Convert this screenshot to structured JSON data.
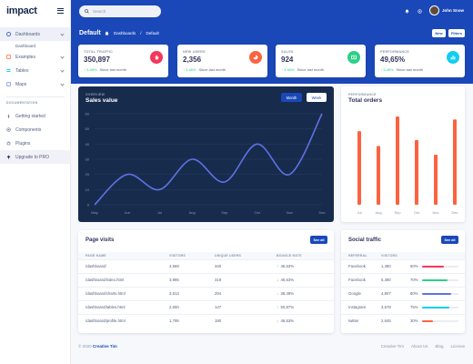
{
  "brand": "impact",
  "sidebar": {
    "items": [
      {
        "label": "Dashboards",
        "icon": "dashboard-icon",
        "color": "#1a48b8"
      },
      {
        "label": "Examples",
        "icon": "examples-icon",
        "color": "#fb6340"
      },
      {
        "label": "Tables",
        "icon": "tables-icon",
        "color": "#11cdef"
      },
      {
        "label": "Maps",
        "icon": "maps-icon",
        "color": "#5e72e4"
      }
    ],
    "sub_item": "Dashboard",
    "heading": "DOCUMENTATION",
    "docs": [
      {
        "label": "Getting started",
        "icon": "rocket-icon"
      },
      {
        "label": "Components",
        "icon": "components-icon"
      },
      {
        "label": "Plugins",
        "icon": "plugins-icon"
      },
      {
        "label": "Upgrade to PRO",
        "icon": "upgrade-icon"
      }
    ]
  },
  "header": {
    "search_placeholder": "Search",
    "user_name": "John Snow",
    "page_title": "Default",
    "breadcrumb": [
      "Dashboards",
      "Default"
    ],
    "new_label": "New",
    "filters_label": "Filters"
  },
  "stats": [
    {
      "label": "TOTAL TRAFFIC",
      "value": "350,897",
      "change": "3.48%",
      "since": "Since last month",
      "color": "#f5365c",
      "icon": "hand-icon"
    },
    {
      "label": "NEW USERS",
      "value": "2,356",
      "change": "3.48%",
      "since": "Since last month",
      "color": "#fb6340",
      "icon": "pie-icon"
    },
    {
      "label": "SALES",
      "value": "924",
      "change": "3.48%",
      "since": "Since last month",
      "color": "#2dce89",
      "icon": "money-icon"
    },
    {
      "label": "PERFORMANCE",
      "value": "49,65%",
      "change": "3.48%",
      "since": "Since last month",
      "color": "#11cdef",
      "icon": "chart-icon"
    }
  ],
  "sales": {
    "overview": "OVERVIEW",
    "title": "Sales value",
    "tab_month": "Month",
    "tab_week": "Week"
  },
  "orders": {
    "overview": "PERFORMANCE",
    "title": "Total orders"
  },
  "chart_data": [
    {
      "type": "line",
      "title": "Sales value",
      "categories": [
        "May",
        "Jun",
        "Jul",
        "Aug",
        "Sep",
        "Oct",
        "Nov",
        "Dec"
      ],
      "values": [
        0,
        20,
        10,
        30,
        15,
        40,
        20,
        60
      ],
      "ylim": [
        0,
        60
      ],
      "yticks": [
        0,
        10,
        20,
        30,
        40,
        50,
        60
      ],
      "grid": true,
      "color": "#5e72e4"
    },
    {
      "type": "bar",
      "title": "Total orders",
      "categories": [
        "Jul",
        "Aug",
        "Sep",
        "Oct",
        "Nov",
        "Dec"
      ],
      "values": [
        25,
        20,
        30,
        22,
        17,
        29
      ],
      "ylim": [
        0,
        30
      ],
      "color": "#fb6340"
    }
  ],
  "page_visits": {
    "title": "Page visits",
    "see_all": "See all",
    "columns": [
      "PAGE NAME",
      "VISITORS",
      "UNIQUE USERS",
      "BOUNCE RATE"
    ],
    "rows": [
      {
        "page": "/dashboard/",
        "visitors": "4,569",
        "unique": "340",
        "bounce": "46,53%",
        "dir": "up"
      },
      {
        "page": "/dashboard/index.html",
        "visitors": "3,985",
        "unique": "319",
        "bounce": "46,53%",
        "dir": "down"
      },
      {
        "page": "/dashboard/charts.html",
        "visitors": "3,513",
        "unique": "294",
        "bounce": "36,49%",
        "dir": "down"
      },
      {
        "page": "/dashboard/tables.html",
        "visitors": "2,050",
        "unique": "147",
        "bounce": "50,87%",
        "dir": "up"
      },
      {
        "page": "/dashboard/profile.html",
        "visitors": "1,795",
        "unique": "190",
        "bounce": "46,53%",
        "dir": "down"
      }
    ]
  },
  "social": {
    "title": "Social traffic",
    "see_all": "See all",
    "columns": [
      "REFERRAL",
      "VISITORS",
      ""
    ],
    "rows": [
      {
        "name": "Facebook",
        "visitors": "1,480",
        "pct": "60%",
        "fill": 0.6,
        "color": "#f5365c"
      },
      {
        "name": "Facebook",
        "visitors": "5,480",
        "pct": "70%",
        "fill": 0.7,
        "color": "#2dce89"
      },
      {
        "name": "Google",
        "visitors": "4,807",
        "pct": "80%",
        "fill": 0.8,
        "color": "#5e72e4"
      },
      {
        "name": "Instagram",
        "visitors": "3,678",
        "pct": "75%",
        "fill": 0.75,
        "color": "#11cdef"
      },
      {
        "name": "twitter",
        "visitors": "2,645",
        "pct": "30%",
        "fill": 0.3,
        "color": "#fb6340"
      }
    ]
  },
  "footer": {
    "copyright": "© 2020",
    "author": "Creative Tim",
    "links": [
      "Creative Tim",
      "About Us",
      "Blog",
      "License"
    ]
  }
}
